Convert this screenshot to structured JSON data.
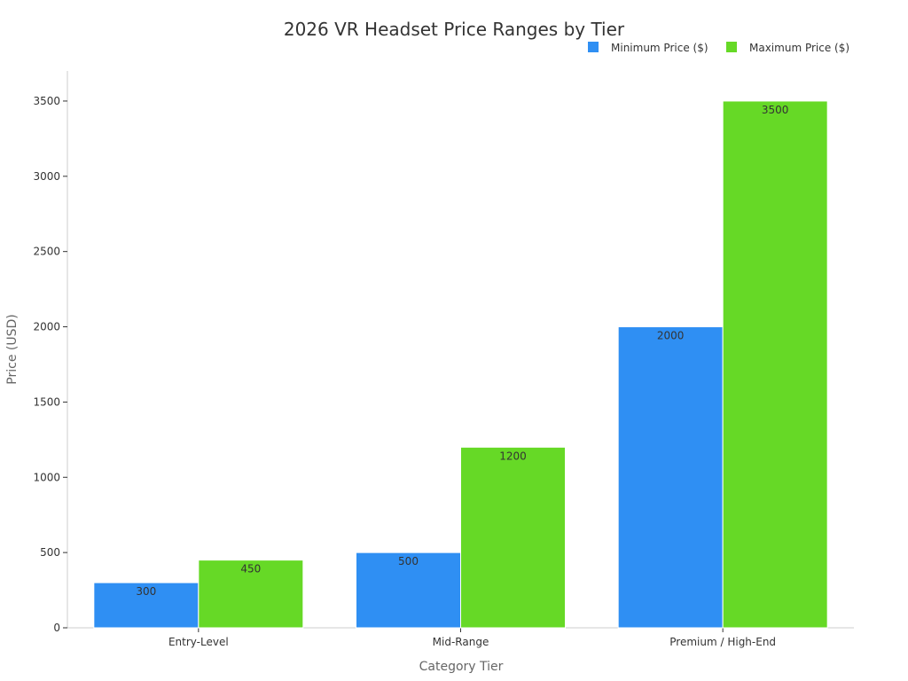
{
  "chart_data": {
    "type": "bar",
    "title": "2026 VR Headset Price Ranges by Tier",
    "xlabel": "Category Tier",
    "ylabel": "Price (USD)",
    "categories": [
      "Entry-Level",
      "Mid-Range",
      "Premium / High-End"
    ],
    "series": [
      {
        "name": "Minimum Price ($)",
        "color": "#2f8ff3",
        "values": [
          300,
          500,
          2000
        ]
      },
      {
        "name": "Maximum Price ($)",
        "color": "#66d926",
        "values": [
          450,
          1200,
          3500
        ]
      }
    ],
    "ylim": [
      0,
      3700
    ],
    "yticks": [
      0,
      500,
      1000,
      1500,
      2000,
      2500,
      3000,
      3500
    ],
    "grid": false,
    "legend_position": "top-right"
  }
}
